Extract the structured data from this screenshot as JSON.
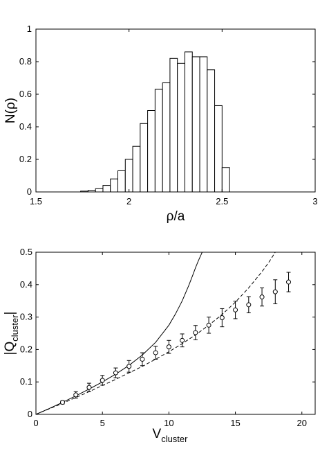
{
  "chart_data": [
    {
      "type": "bar",
      "subtype": "histogram",
      "xlabel": "ρ/a",
      "ylabel": "N(ρ)",
      "xlim": [
        1.5,
        3
      ],
      "ylim": [
        0,
        1
      ],
      "x_ticks": [
        "1.5",
        "2",
        "2.5",
        "3"
      ],
      "y_ticks": [
        "0",
        "0.2",
        "0.4",
        "0.6",
        "0.8",
        "1"
      ],
      "bin_width": 0.04,
      "bin_left_edges": [
        1.74,
        1.78,
        1.82,
        1.86,
        1.9,
        1.94,
        1.98,
        2.02,
        2.06,
        2.1,
        2.14,
        2.18,
        2.22,
        2.26,
        2.3,
        2.34,
        2.38,
        2.42,
        2.46,
        2.5
      ],
      "values": [
        0.005,
        0.01,
        0.02,
        0.04,
        0.08,
        0.13,
        0.2,
        0.28,
        0.42,
        0.5,
        0.63,
        0.67,
        0.82,
        0.79,
        0.86,
        0.83,
        0.83,
        0.75,
        0.53,
        0.15
      ],
      "grid": false,
      "fill_color": "#ffffff",
      "edge_color": "#000000"
    },
    {
      "type": "scatter",
      "xlabel": "V",
      "xlabel_sub": "cluster",
      "ylabel_prefix": "|Q",
      "ylabel_sub": "cluster",
      "ylabel_suffix": "|",
      "xlim": [
        0,
        21
      ],
      "ylim": [
        0,
        0.5
      ],
      "x_ticks": [
        "0",
        "5",
        "10",
        "15",
        "20"
      ],
      "y_ticks": [
        "0",
        "0.1",
        "0.2",
        "0.3",
        "0.4",
        "0.5"
      ],
      "points": {
        "x": [
          2,
          3,
          4,
          5,
          6,
          7,
          8,
          9,
          10,
          11,
          12,
          13,
          14,
          15,
          16,
          17,
          18,
          19
        ],
        "y": [
          0.037,
          0.06,
          0.083,
          0.105,
          0.128,
          0.148,
          0.17,
          0.19,
          0.208,
          0.228,
          0.252,
          0.275,
          0.298,
          0.322,
          0.338,
          0.362,
          0.378,
          0.408
        ],
        "err": [
          0.005,
          0.01,
          0.013,
          0.015,
          0.015,
          0.018,
          0.02,
          0.02,
          0.02,
          0.02,
          0.022,
          0.025,
          0.028,
          0.027,
          0.025,
          0.028,
          0.037,
          0.03
        ],
        "marker": "open-circle"
      },
      "curves": [
        {
          "style": "solid",
          "x": [
            0,
            1,
            2,
            3,
            4,
            5,
            6,
            7,
            8,
            9,
            10,
            10.5,
            11,
            11.5,
            11.8,
            12,
            12.2,
            12.35,
            12.45,
            12.5
          ],
          "y": [
            0,
            0.018,
            0.037,
            0.057,
            0.078,
            0.1,
            0.124,
            0.151,
            0.183,
            0.222,
            0.275,
            0.31,
            0.35,
            0.398,
            0.43,
            0.452,
            0.472,
            0.486,
            0.495,
            0.5
          ]
        },
        {
          "style": "dashed",
          "x": [
            0,
            1,
            2,
            3,
            4,
            5,
            6,
            7,
            8,
            9,
            10,
            11,
            12,
            13,
            14,
            15,
            16,
            17,
            17.5,
            18
          ],
          "y": [
            0,
            0.017,
            0.034,
            0.052,
            0.07,
            0.089,
            0.108,
            0.128,
            0.148,
            0.17,
            0.193,
            0.218,
            0.245,
            0.275,
            0.308,
            0.346,
            0.39,
            0.44,
            0.468,
            0.5
          ]
        }
      ],
      "grid": false
    }
  ]
}
